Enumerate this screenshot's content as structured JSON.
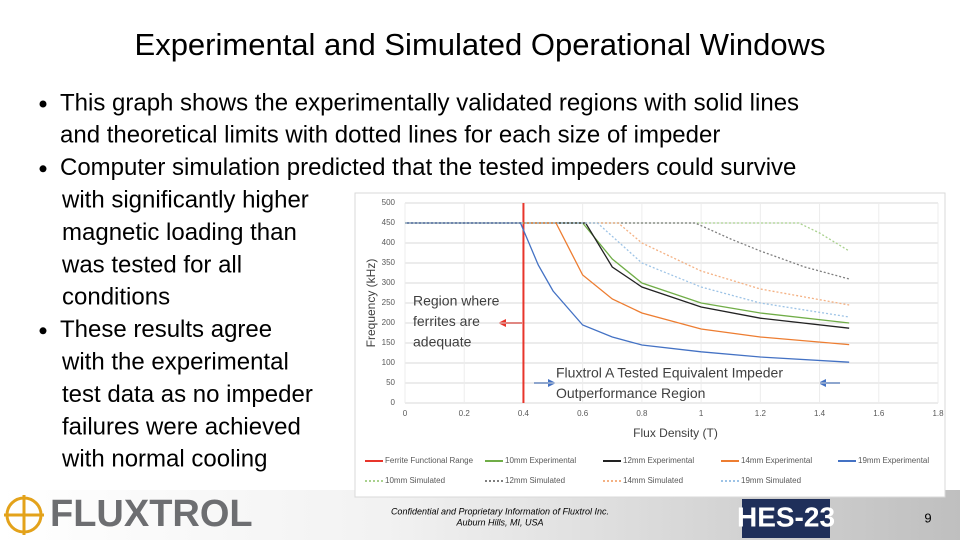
{
  "slide": {
    "title": "Experimental and Simulated Operational Windows",
    "bullets": [
      [
        "This graph shows the experimentally validated regions with solid lines",
        "and theoretical limits with dotted lines for each size of impeder"
      ],
      [
        "Computer simulation predicted that the tested impeders could survive",
        "with significantly higher",
        "magnetic loading than",
        "was tested for all",
        "conditions"
      ],
      [
        "These results agree",
        "with the experimental",
        "test data as no impeder",
        "failures were achieved",
        "with normal cooling"
      ]
    ],
    "footer": [
      "Confidential and Proprietary Information of Fluxtrol Inc.",
      "Auburn Hills, MI, USA"
    ],
    "logo": "FLUXTROL",
    "badge": "HES-23",
    "page_number": "9"
  },
  "chart_data": {
    "type": "line",
    "xlabel": "Flux Density (T)",
    "ylabel": "Frequency (kHz)",
    "xlim": [
      0,
      1.8
    ],
    "xticks": [
      0,
      0.2,
      0.4,
      0.6,
      0.8,
      1,
      1.2,
      1.4,
      1.6,
      1.8
    ],
    "ylim": [
      0,
      500
    ],
    "yticks": [
      0,
      50,
      100,
      150,
      200,
      250,
      300,
      350,
      400,
      450,
      500
    ],
    "grid": true,
    "legend": "bottom",
    "annotations": [
      [
        "Region where",
        "ferrites are",
        "adequate"
      ],
      [
        "Fluxtrol A Tested Equivalent Impeder",
        "Outperformance Region"
      ]
    ],
    "series": [
      {
        "name": "Ferrite Functional Range",
        "color": "#e8352b",
        "line_style": "solid",
        "x": [
          0.4,
          0.4
        ],
        "values": [
          0,
          500
        ]
      },
      {
        "name": "10mm Experimental",
        "color": "#70ad47",
        "line_style": "solid",
        "x": [
          0,
          0.6,
          0.7,
          0.8,
          1.0,
          1.2,
          1.5
        ],
        "values": [
          450,
          450,
          360,
          300,
          250,
          225,
          200
        ]
      },
      {
        "name": "12mm Experimental",
        "color": "#222222",
        "line_style": "solid",
        "x": [
          0,
          0.61,
          0.7,
          0.8,
          1.0,
          1.2,
          1.5
        ],
        "values": [
          450,
          450,
          340,
          290,
          240,
          212,
          187
        ]
      },
      {
        "name": "14mm Experimental",
        "color": "#ed7d31",
        "line_style": "solid",
        "x": [
          0,
          0.51,
          0.6,
          0.7,
          0.8,
          1.0,
          1.2,
          1.5
        ],
        "values": [
          450,
          450,
          320,
          260,
          225,
          185,
          165,
          146
        ]
      },
      {
        "name": "19mm Experimental",
        "color": "#4472c4",
        "line_style": "solid",
        "x": [
          0,
          0.39,
          0.45,
          0.5,
          0.6,
          0.7,
          0.8,
          1.0,
          1.2,
          1.5
        ],
        "values": [
          450,
          450,
          345,
          280,
          195,
          165,
          145,
          128,
          115,
          102
        ]
      },
      {
        "name": "10mm Simulated",
        "color": "#a9d18e",
        "line_style": "dotted",
        "x": [
          0,
          1.33,
          1.4,
          1.5
        ],
        "values": [
          450,
          450,
          425,
          380
        ]
      },
      {
        "name": "12mm Simulated",
        "color": "#7f7f7f",
        "line_style": "dotted",
        "x": [
          0,
          0.98,
          1.1,
          1.2,
          1.35,
          1.5
        ],
        "values": [
          450,
          450,
          410,
          380,
          340,
          310
        ]
      },
      {
        "name": "14mm Simulated",
        "color": "#f4b183",
        "line_style": "dotted",
        "x": [
          0,
          0.72,
          0.8,
          1.0,
          1.2,
          1.5
        ],
        "values": [
          450,
          450,
          400,
          330,
          285,
          245
        ]
      },
      {
        "name": "19mm Simulated",
        "color": "#9dc3e6",
        "line_style": "dotted",
        "x": [
          0,
          0.65,
          0.8,
          1.0,
          1.2,
          1.5
        ],
        "values": [
          450,
          450,
          350,
          290,
          250,
          215
        ]
      }
    ]
  }
}
